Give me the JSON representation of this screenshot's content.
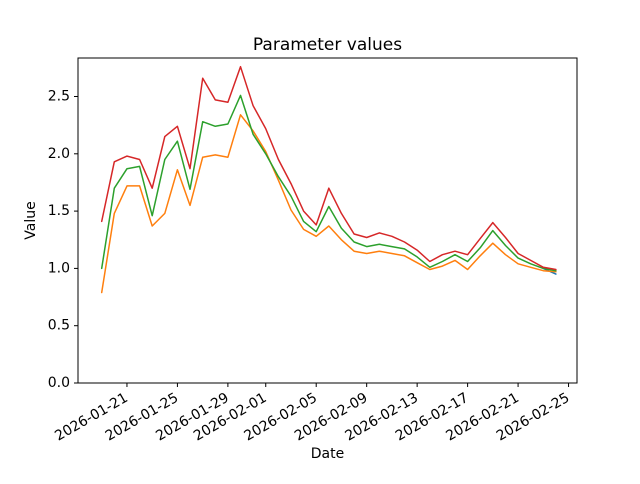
{
  "chart_data": {
    "type": "line",
    "title": "Parameter values",
    "xlabel": "Date",
    "ylabel": "Value",
    "grid": false,
    "legend": "none",
    "ylim": [
      0,
      2.836
    ],
    "xlim_days_from_first_point": [
      -1.88,
      37.67
    ],
    "y_ticks": [
      "0.0",
      "0.5",
      "1.0",
      "1.5",
      "2.0",
      "2.5"
    ],
    "x_ticks": [
      "2026-01-21",
      "2026-01-25",
      "2026-01-29",
      "2026-02-01",
      "2026-02-05",
      "2026-02-09",
      "2026-02-13",
      "2026-02-17",
      "2026-02-21",
      "2026-02-25"
    ],
    "x": [
      "2026-01-19",
      "2026-01-20",
      "2026-01-21",
      "2026-01-22",
      "2026-01-23",
      "2026-01-24",
      "2026-01-25",
      "2026-01-26",
      "2026-01-27",
      "2026-01-28",
      "2026-01-29",
      "2026-01-30",
      "2026-01-31",
      "2026-02-01",
      "2026-02-02",
      "2026-02-03",
      "2026-02-04",
      "2026-02-05",
      "2026-02-06",
      "2026-02-07",
      "2026-02-08",
      "2026-02-09",
      "2026-02-10",
      "2026-02-11",
      "2026-02-12",
      "2026-02-13",
      "2026-02-14",
      "2026-02-15",
      "2026-02-16",
      "2026-02-17",
      "2026-02-18",
      "2026-02-19",
      "2026-02-20",
      "2026-02-21",
      "2026-02-22",
      "2026-02-23",
      "2026-02-24"
    ],
    "series": [
      {
        "name": "red",
        "color": "#d62728",
        "values": [
          1.41,
          1.93,
          1.98,
          1.95,
          1.7,
          2.15,
          2.24,
          1.87,
          2.66,
          2.47,
          2.45,
          2.76,
          2.42,
          2.22,
          1.95,
          1.74,
          1.5,
          1.38,
          1.7,
          1.48,
          1.3,
          1.27,
          1.31,
          1.28,
          1.23,
          1.16,
          1.06,
          1.12,
          1.15,
          1.12,
          1.26,
          1.4,
          1.27,
          1.13,
          1.07,
          1.01,
          0.99
        ]
      },
      {
        "name": "green",
        "color": "#2ca02c",
        "values": [
          1.0,
          1.7,
          1.87,
          1.89,
          1.46,
          1.95,
          2.11,
          1.69,
          2.28,
          2.24,
          2.26,
          2.51,
          2.17,
          2.0,
          1.8,
          1.63,
          1.41,
          1.32,
          1.54,
          1.35,
          1.23,
          1.19,
          1.21,
          1.19,
          1.17,
          1.1,
          1.01,
          1.06,
          1.12,
          1.06,
          1.18,
          1.33,
          1.2,
          1.09,
          1.04,
          1.0,
          0.98
        ]
      },
      {
        "name": "orange",
        "color": "#ff7f0e",
        "values": [
          0.79,
          1.48,
          1.72,
          1.72,
          1.37,
          1.48,
          1.86,
          1.55,
          1.97,
          1.99,
          1.97,
          2.34,
          2.2,
          2.02,
          1.77,
          1.51,
          1.34,
          1.28,
          1.37,
          1.25,
          1.15,
          1.13,
          1.15,
          1.13,
          1.11,
          1.05,
          0.99,
          1.02,
          1.07,
          0.99,
          1.11,
          1.22,
          1.12,
          1.04,
          1.01,
          0.98,
          0.97
        ]
      },
      {
        "name": "blue",
        "color": "#1f77b4",
        "x": [
          "2026-02-23",
          "2026-02-24"
        ],
        "values": [
          1.0,
          0.95
        ]
      }
    ],
    "draw_order": [
      "blue",
      "orange",
      "green",
      "red"
    ]
  }
}
